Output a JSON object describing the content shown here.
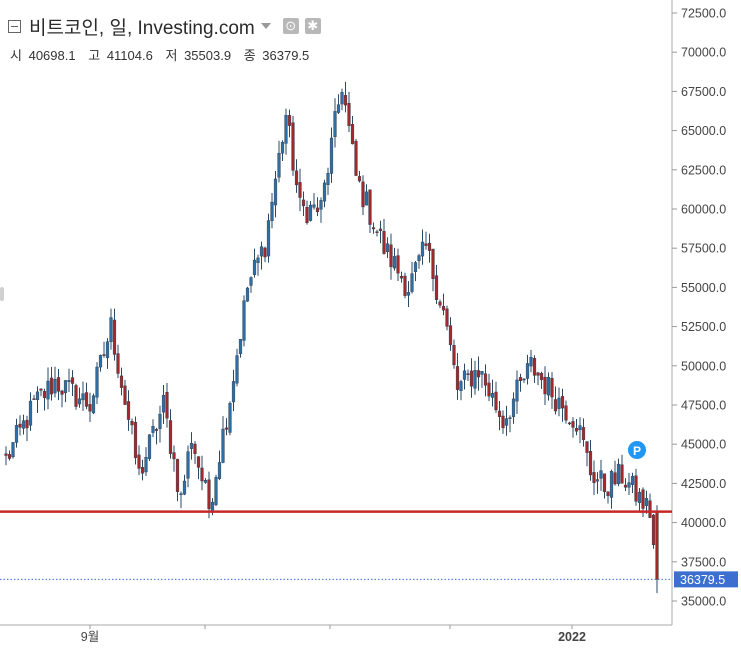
{
  "header": {
    "title": "비트코인, 일, Investing.com",
    "icons": [
      "collapse-icon",
      "dropdown-caret-icon",
      "settings-icon",
      "gear-icon"
    ]
  },
  "ohlc": {
    "open_label": "시",
    "open_value": "40698.1",
    "high_label": "고",
    "high_value": "41104.6",
    "low_label": "저",
    "low_value": "35503.9",
    "close_label": "종",
    "close_value": "36379.5"
  },
  "chart_data": {
    "type": "candlestick",
    "title": "비트코인, 일, Investing.com",
    "ylim": [
      32500,
      73000
    ],
    "y_ticks": [
      "72500.0",
      "70000.0",
      "67500.0",
      "65000.0",
      "62500.0",
      "60000.0",
      "57500.0",
      "55000.0",
      "52500.0",
      "50000.0",
      "47500.0",
      "45000.0",
      "42500.0",
      "40000.0",
      "37500.0",
      "35000.0"
    ],
    "x_tick_labels": [
      "9월",
      "2022"
    ],
    "last_price": "36379.5",
    "support_line": 40700,
    "marker_label": "P",
    "colors": {
      "up": "#2f6ea5",
      "down": "#a3282c",
      "support": "#c62828",
      "last_price_bg": "#3d6fd0",
      "marker": "#2196f3"
    },
    "waypoints": [
      [
        0,
        44000
      ],
      [
        8,
        47500
      ],
      [
        14,
        49000
      ],
      [
        24,
        47500
      ],
      [
        30,
        52500
      ],
      [
        38,
        43000
      ],
      [
        45,
        47500
      ],
      [
        50,
        41500
      ],
      [
        53,
        45500
      ],
      [
        58,
        41000
      ],
      [
        64,
        48000
      ],
      [
        69,
        55000
      ],
      [
        74,
        57800
      ],
      [
        80,
        66000
      ],
      [
        84,
        60000
      ],
      [
        90,
        60000
      ],
      [
        96,
        68000
      ],
      [
        100,
        62000
      ],
      [
        108,
        57500
      ],
      [
        115,
        55000
      ],
      [
        120,
        57500
      ],
      [
        125,
        53500
      ],
      [
        129,
        48500
      ],
      [
        135,
        49800
      ],
      [
        142,
        46500
      ],
      [
        150,
        50000
      ],
      [
        157,
        48000
      ],
      [
        163,
        46500
      ],
      [
        167,
        43300
      ],
      [
        171,
        42300
      ],
      [
        176,
        43000
      ],
      [
        180,
        41800
      ],
      [
        184,
        40700
      ],
      [
        186,
        36379.5
      ]
    ],
    "n_candles": 187
  }
}
